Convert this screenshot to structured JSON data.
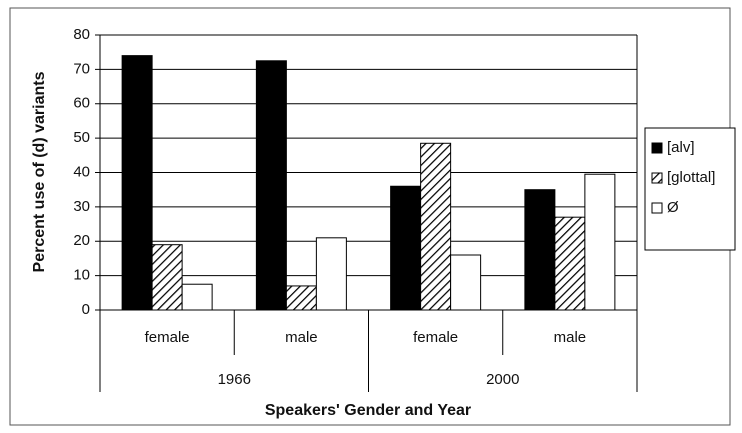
{
  "chart_data": {
    "type": "bar",
    "x_label": "Speakers' Gender and Year",
    "y_label": "Percent use of (d) variants",
    "groups": [
      {
        "name": "1966",
        "categories": [
          "female",
          "male"
        ]
      },
      {
        "name": "2000",
        "categories": [
          "female",
          "male"
        ]
      }
    ],
    "series": [
      {
        "name": "[alv]",
        "color": "#000000",
        "hatch": false,
        "values": [
          74,
          72.5,
          36,
          35
        ]
      },
      {
        "name": "[glottal]",
        "color": "#ffffff",
        "hatch": true,
        "values": [
          19,
          7,
          48.5,
          27
        ]
      },
      {
        "name": "Ø",
        "color": "#ffffff",
        "hatch": false,
        "values": [
          7.5,
          21,
          16,
          39.5
        ]
      }
    ],
    "ylim": [
      0,
      80
    ],
    "yticks": [
      0,
      10,
      20,
      30,
      40,
      50,
      60,
      70,
      80
    ],
    "grid": true,
    "legend": "right"
  }
}
